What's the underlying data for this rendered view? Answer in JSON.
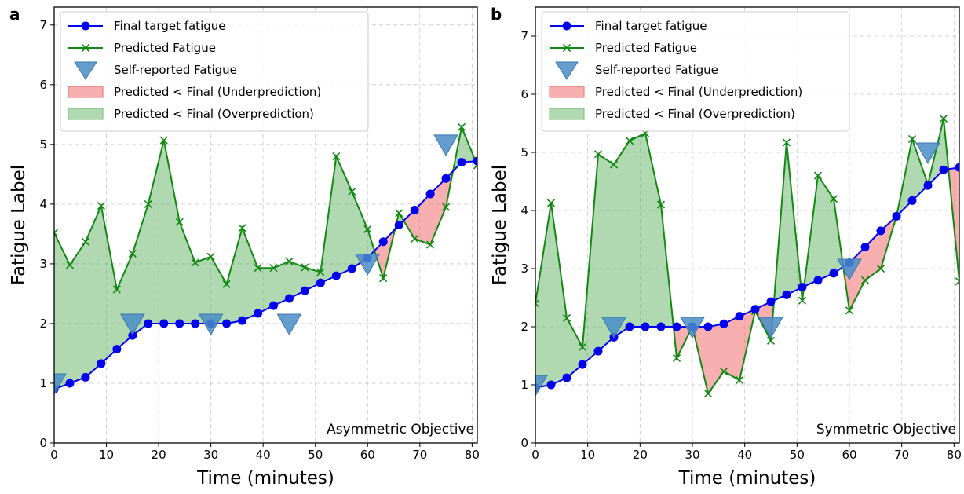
{
  "chart_data": [
    {
      "type": "line",
      "panel_label": "a",
      "xlabel": "Time (minutes)",
      "ylabel": "Fatigue Label",
      "xlim": [
        0,
        81
      ],
      "ylim": [
        0,
        7.3
      ],
      "xticks": [
        0,
        10,
        20,
        30,
        40,
        50,
        60,
        70,
        80
      ],
      "yticks": [
        0,
        1,
        2,
        3,
        4,
        5,
        6,
        7
      ],
      "grid": true,
      "legend_position": "top-left",
      "annotation": "Asymmetric Objective",
      "legend": [
        {
          "key": "final",
          "label": "Final target fatigue"
        },
        {
          "key": "predicted",
          "label": "Predicted Fatigue"
        },
        {
          "key": "self",
          "label": "Self-reported Fatigue"
        },
        {
          "key": "under",
          "label": "Predicted < Final (Underprediction)"
        },
        {
          "key": "over",
          "label": "Predicted < Final (Overprediction)"
        }
      ],
      "series": [
        {
          "name": "Final target fatigue",
          "color": "#0000ee",
          "x": [
            0,
            3,
            6,
            9,
            12,
            15,
            18,
            21,
            24,
            27,
            30,
            33,
            36,
            39,
            42,
            45,
            48,
            51,
            54,
            57,
            60,
            63,
            66,
            69,
            72,
            75,
            78,
            81
          ],
          "y": [
            0.9,
            1.0,
            1.1,
            1.33,
            1.57,
            1.8,
            2.0,
            2.0,
            2.0,
            2.0,
            2.0,
            2.0,
            2.05,
            2.17,
            2.3,
            2.42,
            2.55,
            2.68,
            2.8,
            2.92,
            3.1,
            3.37,
            3.65,
            3.9,
            4.17,
            4.43,
            4.7,
            4.72
          ]
        },
        {
          "name": "Predicted Fatigue",
          "color": "#118811",
          "x": [
            0,
            3,
            6,
            9,
            12,
            15,
            18,
            21,
            24,
            27,
            30,
            33,
            36,
            39,
            42,
            45,
            48,
            51,
            54,
            57,
            60,
            63,
            66,
            69,
            72,
            75,
            78,
            81
          ],
          "y": [
            3.52,
            2.98,
            3.37,
            3.97,
            2.57,
            3.17,
            4.0,
            5.07,
            3.7,
            3.02,
            3.12,
            2.66,
            3.6,
            2.93,
            2.93,
            3.04,
            2.94,
            2.86,
            4.8,
            4.21,
            3.58,
            2.76,
            3.85,
            3.42,
            3.32,
            3.95,
            5.29,
            4.65
          ]
        },
        {
          "name": "Self-reported Fatigue",
          "color": "#4a8cc7",
          "x": [
            0,
            15,
            30,
            45,
            60,
            75
          ],
          "y": [
            1.0,
            2.0,
            2.0,
            2.0,
            3.0,
            5.0
          ]
        }
      ]
    },
    {
      "type": "line",
      "panel_label": "b",
      "xlabel": "Time (minutes)",
      "ylabel": "Fatigue Label",
      "xlim": [
        0,
        81
      ],
      "ylim": [
        0,
        7.5
      ],
      "xticks": [
        0,
        10,
        20,
        30,
        40,
        50,
        60,
        70,
        80
      ],
      "yticks": [
        0,
        1,
        2,
        3,
        4,
        5,
        6,
        7
      ],
      "grid": true,
      "legend_position": "top-left",
      "annotation": "Symmetric Objective",
      "legend": [
        {
          "key": "final",
          "label": "Final target fatigue"
        },
        {
          "key": "predicted",
          "label": "Predicted Fatigue"
        },
        {
          "key": "self",
          "label": "Self-reported Fatigue"
        },
        {
          "key": "under",
          "label": "Predicted < Final (Underprediction)"
        },
        {
          "key": "over",
          "label": "Predicted < Final (Overprediction)"
        }
      ],
      "series": [
        {
          "name": "Final target fatigue",
          "color": "#0000ee",
          "x": [
            0,
            3,
            6,
            9,
            12,
            15,
            18,
            21,
            24,
            27,
            30,
            33,
            36,
            39,
            42,
            45,
            48,
            51,
            54,
            57,
            60,
            63,
            66,
            69,
            72,
            75,
            78,
            81
          ],
          "y": [
            0.95,
            1.0,
            1.12,
            1.35,
            1.58,
            1.82,
            2.0,
            2.0,
            2.0,
            2.0,
            2.0,
            2.0,
            2.05,
            2.18,
            2.3,
            2.43,
            2.55,
            2.68,
            2.8,
            2.92,
            3.1,
            3.37,
            3.65,
            3.9,
            4.17,
            4.43,
            4.7,
            4.74
          ]
        },
        {
          "name": "Predicted Fatigue",
          "color": "#118811",
          "x": [
            0,
            3,
            6,
            9,
            12,
            15,
            18,
            21,
            24,
            27,
            30,
            33,
            36,
            39,
            42,
            45,
            48,
            51,
            54,
            57,
            60,
            63,
            66,
            69,
            72,
            75,
            78,
            81
          ],
          "y": [
            2.4,
            4.13,
            2.15,
            1.65,
            4.97,
            4.79,
            5.2,
            5.33,
            4.1,
            1.46,
            2.0,
            0.85,
            1.23,
            1.08,
            2.27,
            1.76,
            5.17,
            2.45,
            4.6,
            4.2,
            2.28,
            2.8,
            3.0,
            3.9,
            5.23,
            4.45,
            5.58,
            2.78
          ]
        },
        {
          "name": "Self-reported Fatigue",
          "color": "#4a8cc7",
          "x": [
            0,
            15,
            30,
            45,
            60,
            75
          ],
          "y": [
            1.0,
            2.0,
            2.0,
            2.0,
            3.0,
            5.0
          ]
        }
      ]
    }
  ]
}
